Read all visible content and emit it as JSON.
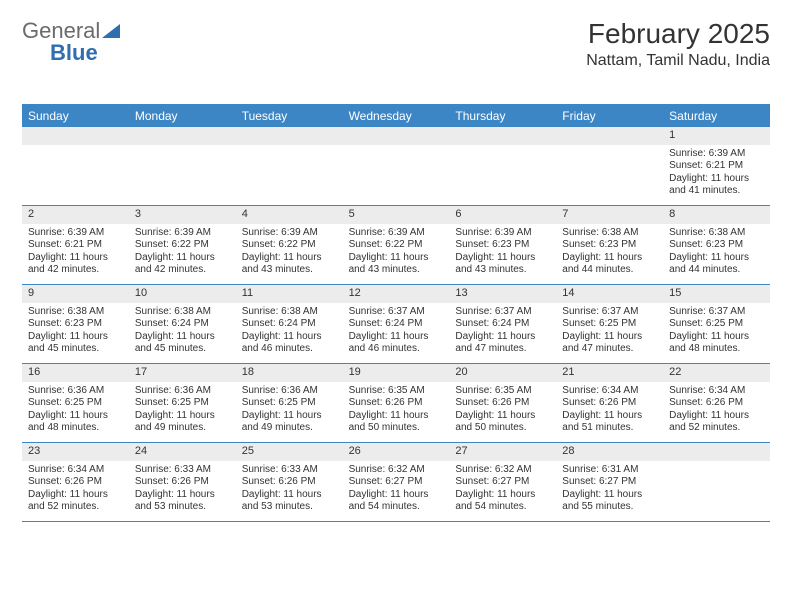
{
  "logo": {
    "part1": "General",
    "part2": "Blue"
  },
  "title": "February 2025",
  "location": "Nattam, Tamil Nadu, India",
  "colors": {
    "header_bg": "#3d86c6",
    "header_text": "#ffffff",
    "border": "#3d86c6",
    "daynum_bg": "#ececec",
    "text": "#333333",
    "logo_gray": "#6b6b6b",
    "logo_blue": "#2f6fb0",
    "background": "#ffffff"
  },
  "fonts": {
    "title_size": 28,
    "location_size": 16,
    "dayhead_size": 12,
    "daynum_size": 11,
    "cell_size": 10
  },
  "day_names": [
    "Sunday",
    "Monday",
    "Tuesday",
    "Wednesday",
    "Thursday",
    "Friday",
    "Saturday"
  ],
  "weeks": [
    [
      {
        "n": "",
        "sr": "",
        "ss": "",
        "dl": ""
      },
      {
        "n": "",
        "sr": "",
        "ss": "",
        "dl": ""
      },
      {
        "n": "",
        "sr": "",
        "ss": "",
        "dl": ""
      },
      {
        "n": "",
        "sr": "",
        "ss": "",
        "dl": ""
      },
      {
        "n": "",
        "sr": "",
        "ss": "",
        "dl": ""
      },
      {
        "n": "",
        "sr": "",
        "ss": "",
        "dl": ""
      },
      {
        "n": "1",
        "sr": "Sunrise: 6:39 AM",
        "ss": "Sunset: 6:21 PM",
        "dl": "Daylight: 11 hours and 41 minutes."
      }
    ],
    [
      {
        "n": "2",
        "sr": "Sunrise: 6:39 AM",
        "ss": "Sunset: 6:21 PM",
        "dl": "Daylight: 11 hours and 42 minutes."
      },
      {
        "n": "3",
        "sr": "Sunrise: 6:39 AM",
        "ss": "Sunset: 6:22 PM",
        "dl": "Daylight: 11 hours and 42 minutes."
      },
      {
        "n": "4",
        "sr": "Sunrise: 6:39 AM",
        "ss": "Sunset: 6:22 PM",
        "dl": "Daylight: 11 hours and 43 minutes."
      },
      {
        "n": "5",
        "sr": "Sunrise: 6:39 AM",
        "ss": "Sunset: 6:22 PM",
        "dl": "Daylight: 11 hours and 43 minutes."
      },
      {
        "n": "6",
        "sr": "Sunrise: 6:39 AM",
        "ss": "Sunset: 6:23 PM",
        "dl": "Daylight: 11 hours and 43 minutes."
      },
      {
        "n": "7",
        "sr": "Sunrise: 6:38 AM",
        "ss": "Sunset: 6:23 PM",
        "dl": "Daylight: 11 hours and 44 minutes."
      },
      {
        "n": "8",
        "sr": "Sunrise: 6:38 AM",
        "ss": "Sunset: 6:23 PM",
        "dl": "Daylight: 11 hours and 44 minutes."
      }
    ],
    [
      {
        "n": "9",
        "sr": "Sunrise: 6:38 AM",
        "ss": "Sunset: 6:23 PM",
        "dl": "Daylight: 11 hours and 45 minutes."
      },
      {
        "n": "10",
        "sr": "Sunrise: 6:38 AM",
        "ss": "Sunset: 6:24 PM",
        "dl": "Daylight: 11 hours and 45 minutes."
      },
      {
        "n": "11",
        "sr": "Sunrise: 6:38 AM",
        "ss": "Sunset: 6:24 PM",
        "dl": "Daylight: 11 hours and 46 minutes."
      },
      {
        "n": "12",
        "sr": "Sunrise: 6:37 AM",
        "ss": "Sunset: 6:24 PM",
        "dl": "Daylight: 11 hours and 46 minutes."
      },
      {
        "n": "13",
        "sr": "Sunrise: 6:37 AM",
        "ss": "Sunset: 6:24 PM",
        "dl": "Daylight: 11 hours and 47 minutes."
      },
      {
        "n": "14",
        "sr": "Sunrise: 6:37 AM",
        "ss": "Sunset: 6:25 PM",
        "dl": "Daylight: 11 hours and 47 minutes."
      },
      {
        "n": "15",
        "sr": "Sunrise: 6:37 AM",
        "ss": "Sunset: 6:25 PM",
        "dl": "Daylight: 11 hours and 48 minutes."
      }
    ],
    [
      {
        "n": "16",
        "sr": "Sunrise: 6:36 AM",
        "ss": "Sunset: 6:25 PM",
        "dl": "Daylight: 11 hours and 48 minutes."
      },
      {
        "n": "17",
        "sr": "Sunrise: 6:36 AM",
        "ss": "Sunset: 6:25 PM",
        "dl": "Daylight: 11 hours and 49 minutes."
      },
      {
        "n": "18",
        "sr": "Sunrise: 6:36 AM",
        "ss": "Sunset: 6:25 PM",
        "dl": "Daylight: 11 hours and 49 minutes."
      },
      {
        "n": "19",
        "sr": "Sunrise: 6:35 AM",
        "ss": "Sunset: 6:26 PM",
        "dl": "Daylight: 11 hours and 50 minutes."
      },
      {
        "n": "20",
        "sr": "Sunrise: 6:35 AM",
        "ss": "Sunset: 6:26 PM",
        "dl": "Daylight: 11 hours and 50 minutes."
      },
      {
        "n": "21",
        "sr": "Sunrise: 6:34 AM",
        "ss": "Sunset: 6:26 PM",
        "dl": "Daylight: 11 hours and 51 minutes."
      },
      {
        "n": "22",
        "sr": "Sunrise: 6:34 AM",
        "ss": "Sunset: 6:26 PM",
        "dl": "Daylight: 11 hours and 52 minutes."
      }
    ],
    [
      {
        "n": "23",
        "sr": "Sunrise: 6:34 AM",
        "ss": "Sunset: 6:26 PM",
        "dl": "Daylight: 11 hours and 52 minutes."
      },
      {
        "n": "24",
        "sr": "Sunrise: 6:33 AM",
        "ss": "Sunset: 6:26 PM",
        "dl": "Daylight: 11 hours and 53 minutes."
      },
      {
        "n": "25",
        "sr": "Sunrise: 6:33 AM",
        "ss": "Sunset: 6:26 PM",
        "dl": "Daylight: 11 hours and 53 minutes."
      },
      {
        "n": "26",
        "sr": "Sunrise: 6:32 AM",
        "ss": "Sunset: 6:27 PM",
        "dl": "Daylight: 11 hours and 54 minutes."
      },
      {
        "n": "27",
        "sr": "Sunrise: 6:32 AM",
        "ss": "Sunset: 6:27 PM",
        "dl": "Daylight: 11 hours and 54 minutes."
      },
      {
        "n": "28",
        "sr": "Sunrise: 6:31 AM",
        "ss": "Sunset: 6:27 PM",
        "dl": "Daylight: 11 hours and 55 minutes."
      },
      {
        "n": "",
        "sr": "",
        "ss": "",
        "dl": ""
      }
    ]
  ]
}
